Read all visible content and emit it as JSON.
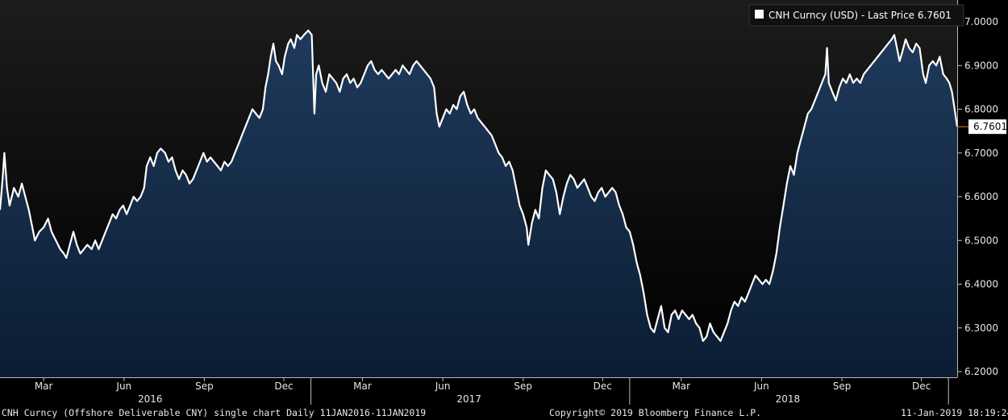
{
  "legend": {
    "label": "CNH Curncy (USD) - Last Price 6.7601"
  },
  "last_price_label": "6.7601",
  "footer": {
    "description": "CNH Curncy (Offshore Deliverable CNY) single chart  Daily 11JAN2016-11JAN2019",
    "copyright": "Copyright© 2019 Bloomberg Finance L.P.",
    "timestamp": "11-Jan-2019 18:19:24"
  },
  "colors": {
    "background": "#000000",
    "plot_top": "#1a1a1a",
    "area_top": "#1f3a5c",
    "area_bottom": "#0b1d33",
    "line": "#ffffff",
    "last_price_box": "#ffffff",
    "last_price_marker": "#e08a1e"
  },
  "chart_data": {
    "type": "area",
    "series": [
      {
        "name": "CNH Curncy (USD) - Last Price",
        "last": 6.7601
      }
    ],
    "ylim": [
      6.2,
      7.0
    ],
    "yticks": [
      6.2,
      6.3,
      6.4,
      6.5,
      6.6,
      6.7,
      6.8,
      6.9,
      7.0
    ],
    "ytick_labels": [
      "6.2000",
      "6.3000",
      "6.4000",
      "6.5000",
      "6.6000",
      "6.7000",
      "6.8000",
      "6.9000",
      "7.0000"
    ],
    "month_ticks": [
      {
        "label": "Mar",
        "date": "2016-03-01"
      },
      {
        "label": "Jun",
        "date": "2016-06-01"
      },
      {
        "label": "Sep",
        "date": "2016-09-01"
      },
      {
        "label": "Dec",
        "date": "2016-12-01"
      },
      {
        "label": "Mar",
        "date": "2017-03-01"
      },
      {
        "label": "Jun",
        "date": "2017-06-01"
      },
      {
        "label": "Sep",
        "date": "2017-09-01"
      },
      {
        "label": "Dec",
        "date": "2017-12-01"
      },
      {
        "label": "Mar",
        "date": "2018-03-01"
      },
      {
        "label": "Jun",
        "date": "2018-06-01"
      },
      {
        "label": "Sep",
        "date": "2018-09-01"
      },
      {
        "label": "Dec",
        "date": "2018-12-01"
      }
    ],
    "year_labels": [
      {
        "label": "2016",
        "date": "2016-07-01"
      },
      {
        "label": "2017",
        "date": "2017-07-01"
      },
      {
        "label": "2018",
        "date": "2018-07-01"
      }
    ],
    "year_boundaries": [
      "2017-01-01",
      "2018-01-01",
      "2019-01-01"
    ],
    "xlim": [
      "2016-01-11",
      "2019-01-11"
    ],
    "points": [
      [
        "2016-01-11",
        6.57
      ],
      [
        "2016-01-14",
        6.64
      ],
      [
        "2016-01-16",
        6.7
      ],
      [
        "2016-01-19",
        6.62
      ],
      [
        "2016-01-22",
        6.58
      ],
      [
        "2016-01-27",
        6.62
      ],
      [
        "2016-02-01",
        6.6
      ],
      [
        "2016-02-05",
        6.63
      ],
      [
        "2016-02-09",
        6.6
      ],
      [
        "2016-02-13",
        6.57
      ],
      [
        "2016-02-17",
        6.53
      ],
      [
        "2016-02-20",
        6.5
      ],
      [
        "2016-02-25",
        6.52
      ],
      [
        "2016-03-01",
        6.53
      ],
      [
        "2016-03-06",
        6.55
      ],
      [
        "2016-03-10",
        6.52
      ],
      [
        "2016-03-15",
        6.5
      ],
      [
        "2016-03-20",
        6.48
      ],
      [
        "2016-03-24",
        6.47
      ],
      [
        "2016-03-27",
        6.46
      ],
      [
        "2016-03-31",
        6.49
      ],
      [
        "2016-04-04",
        6.52
      ],
      [
        "2016-04-08",
        6.49
      ],
      [
        "2016-04-12",
        6.47
      ],
      [
        "2016-04-16",
        6.48
      ],
      [
        "2016-04-20",
        6.49
      ],
      [
        "2016-04-25",
        6.48
      ],
      [
        "2016-04-29",
        6.5
      ],
      [
        "2016-05-03",
        6.48
      ],
      [
        "2016-05-07",
        6.5
      ],
      [
        "2016-05-11",
        6.52
      ],
      [
        "2016-05-15",
        6.54
      ],
      [
        "2016-05-19",
        6.56
      ],
      [
        "2016-05-23",
        6.55
      ],
      [
        "2016-05-27",
        6.57
      ],
      [
        "2016-05-31",
        6.58
      ],
      [
        "2016-06-04",
        6.56
      ],
      [
        "2016-06-08",
        6.58
      ],
      [
        "2016-06-12",
        6.6
      ],
      [
        "2016-06-16",
        6.59
      ],
      [
        "2016-06-20",
        6.6
      ],
      [
        "2016-06-24",
        6.62
      ],
      [
        "2016-06-27",
        6.67
      ],
      [
        "2016-07-01",
        6.69
      ],
      [
        "2016-07-05",
        6.67
      ],
      [
        "2016-07-09",
        6.7
      ],
      [
        "2016-07-13",
        6.71
      ],
      [
        "2016-07-18",
        6.7
      ],
      [
        "2016-07-22",
        6.68
      ],
      [
        "2016-07-26",
        6.69
      ],
      [
        "2016-07-30",
        6.66
      ],
      [
        "2016-08-03",
        6.64
      ],
      [
        "2016-08-07",
        6.66
      ],
      [
        "2016-08-11",
        6.65
      ],
      [
        "2016-08-15",
        6.63
      ],
      [
        "2016-08-19",
        6.64
      ],
      [
        "2016-08-23",
        6.66
      ],
      [
        "2016-08-27",
        6.68
      ],
      [
        "2016-08-31",
        6.7
      ],
      [
        "2016-09-04",
        6.68
      ],
      [
        "2016-09-08",
        6.69
      ],
      [
        "2016-09-12",
        6.68
      ],
      [
        "2016-09-16",
        6.67
      ],
      [
        "2016-09-20",
        6.66
      ],
      [
        "2016-09-24",
        6.68
      ],
      [
        "2016-09-28",
        6.67
      ],
      [
        "2016-10-02",
        6.68
      ],
      [
        "2016-10-06",
        6.7
      ],
      [
        "2016-10-10",
        6.72
      ],
      [
        "2016-10-14",
        6.74
      ],
      [
        "2016-10-18",
        6.76
      ],
      [
        "2016-10-22",
        6.78
      ],
      [
        "2016-10-26",
        6.8
      ],
      [
        "2016-10-30",
        6.79
      ],
      [
        "2016-11-03",
        6.78
      ],
      [
        "2016-11-07",
        6.8
      ],
      [
        "2016-11-10",
        6.85
      ],
      [
        "2016-11-13",
        6.88
      ],
      [
        "2016-11-16",
        6.92
      ],
      [
        "2016-11-19",
        6.95
      ],
      [
        "2016-11-22",
        6.91
      ],
      [
        "2016-11-25",
        6.9
      ],
      [
        "2016-11-29",
        6.88
      ],
      [
        "2016-12-02",
        6.92
      ],
      [
        "2016-12-06",
        6.95
      ],
      [
        "2016-12-09",
        6.96
      ],
      [
        "2016-12-13",
        6.94
      ],
      [
        "2016-12-16",
        6.97
      ],
      [
        "2016-12-20",
        6.96
      ],
      [
        "2016-12-24",
        6.97
      ],
      [
        "2016-12-29",
        6.98
      ],
      [
        "2017-01-02",
        6.97
      ],
      [
        "2017-01-04",
        6.85
      ],
      [
        "2017-01-05",
        6.79
      ],
      [
        "2017-01-07",
        6.88
      ],
      [
        "2017-01-10",
        6.9
      ],
      [
        "2017-01-14",
        6.86
      ],
      [
        "2017-01-18",
        6.84
      ],
      [
        "2017-01-22",
        6.88
      ],
      [
        "2017-01-26",
        6.87
      ],
      [
        "2017-01-30",
        6.86
      ],
      [
        "2017-02-03",
        6.84
      ],
      [
        "2017-02-07",
        6.87
      ],
      [
        "2017-02-11",
        6.88
      ],
      [
        "2017-02-15",
        6.86
      ],
      [
        "2017-02-19",
        6.87
      ],
      [
        "2017-02-23",
        6.85
      ],
      [
        "2017-02-27",
        6.86
      ],
      [
        "2017-03-03",
        6.88
      ],
      [
        "2017-03-07",
        6.9
      ],
      [
        "2017-03-11",
        6.91
      ],
      [
        "2017-03-15",
        6.89
      ],
      [
        "2017-03-19",
        6.88
      ],
      [
        "2017-03-23",
        6.89
      ],
      [
        "2017-03-27",
        6.88
      ],
      [
        "2017-03-31",
        6.87
      ],
      [
        "2017-04-04",
        6.88
      ],
      [
        "2017-04-08",
        6.89
      ],
      [
        "2017-04-12",
        6.88
      ],
      [
        "2017-04-16",
        6.9
      ],
      [
        "2017-04-20",
        6.89
      ],
      [
        "2017-04-24",
        6.88
      ],
      [
        "2017-04-28",
        6.9
      ],
      [
        "2017-05-02",
        6.91
      ],
      [
        "2017-05-06",
        6.9
      ],
      [
        "2017-05-10",
        6.89
      ],
      [
        "2017-05-14",
        6.88
      ],
      [
        "2017-05-18",
        6.87
      ],
      [
        "2017-05-22",
        6.85
      ],
      [
        "2017-05-25",
        6.79
      ],
      [
        "2017-05-28",
        6.76
      ],
      [
        "2017-06-01",
        6.78
      ],
      [
        "2017-06-05",
        6.8
      ],
      [
        "2017-06-09",
        6.79
      ],
      [
        "2017-06-13",
        6.81
      ],
      [
        "2017-06-17",
        6.8
      ],
      [
        "2017-06-21",
        6.83
      ],
      [
        "2017-06-25",
        6.84
      ],
      [
        "2017-06-29",
        6.81
      ],
      [
        "2017-07-03",
        6.79
      ],
      [
        "2017-07-07",
        6.8
      ],
      [
        "2017-07-11",
        6.78
      ],
      [
        "2017-07-15",
        6.77
      ],
      [
        "2017-07-19",
        6.76
      ],
      [
        "2017-07-23",
        6.75
      ],
      [
        "2017-07-27",
        6.74
      ],
      [
        "2017-07-31",
        6.72
      ],
      [
        "2017-08-04",
        6.7
      ],
      [
        "2017-08-08",
        6.69
      ],
      [
        "2017-08-12",
        6.67
      ],
      [
        "2017-08-16",
        6.68
      ],
      [
        "2017-08-20",
        6.66
      ],
      [
        "2017-08-24",
        6.62
      ],
      [
        "2017-08-28",
        6.58
      ],
      [
        "2017-09-01",
        6.56
      ],
      [
        "2017-09-05",
        6.53
      ],
      [
        "2017-09-07",
        6.49
      ],
      [
        "2017-09-11",
        6.54
      ],
      [
        "2017-09-15",
        6.57
      ],
      [
        "2017-09-19",
        6.55
      ],
      [
        "2017-09-23",
        6.62
      ],
      [
        "2017-09-27",
        6.66
      ],
      [
        "2017-10-01",
        6.65
      ],
      [
        "2017-10-05",
        6.64
      ],
      [
        "2017-10-09",
        6.61
      ],
      [
        "2017-10-13",
        6.56
      ],
      [
        "2017-10-17",
        6.6
      ],
      [
        "2017-10-21",
        6.63
      ],
      [
        "2017-10-25",
        6.65
      ],
      [
        "2017-10-29",
        6.64
      ],
      [
        "2017-11-02",
        6.62
      ],
      [
        "2017-11-06",
        6.63
      ],
      [
        "2017-11-10",
        6.64
      ],
      [
        "2017-11-14",
        6.62
      ],
      [
        "2017-11-18",
        6.6
      ],
      [
        "2017-11-22",
        6.59
      ],
      [
        "2017-11-26",
        6.61
      ],
      [
        "2017-11-30",
        6.62
      ],
      [
        "2017-12-04",
        6.6
      ],
      [
        "2017-12-08",
        6.61
      ],
      [
        "2017-12-12",
        6.62
      ],
      [
        "2017-12-16",
        6.61
      ],
      [
        "2017-12-20",
        6.58
      ],
      [
        "2017-12-24",
        6.56
      ],
      [
        "2017-12-28",
        6.53
      ],
      [
        "2018-01-01",
        6.52
      ],
      [
        "2018-01-05",
        6.49
      ],
      [
        "2018-01-09",
        6.45
      ],
      [
        "2018-01-13",
        6.42
      ],
      [
        "2018-01-17",
        6.38
      ],
      [
        "2018-01-21",
        6.33
      ],
      [
        "2018-01-25",
        6.3
      ],
      [
        "2018-01-29",
        6.29
      ],
      [
        "2018-02-02",
        6.32
      ],
      [
        "2018-02-06",
        6.35
      ],
      [
        "2018-02-10",
        6.3
      ],
      [
        "2018-02-14",
        6.29
      ],
      [
        "2018-02-18",
        6.33
      ],
      [
        "2018-02-22",
        6.34
      ],
      [
        "2018-02-26",
        6.32
      ],
      [
        "2018-03-02",
        6.34
      ],
      [
        "2018-03-06",
        6.33
      ],
      [
        "2018-03-10",
        6.32
      ],
      [
        "2018-03-14",
        6.33
      ],
      [
        "2018-03-18",
        6.31
      ],
      [
        "2018-03-22",
        6.3
      ],
      [
        "2018-03-26",
        6.27
      ],
      [
        "2018-03-30",
        6.28
      ],
      [
        "2018-04-03",
        6.31
      ],
      [
        "2018-04-07",
        6.29
      ],
      [
        "2018-04-11",
        6.28
      ],
      [
        "2018-04-15",
        6.27
      ],
      [
        "2018-04-19",
        6.29
      ],
      [
        "2018-04-23",
        6.31
      ],
      [
        "2018-04-27",
        6.34
      ],
      [
        "2018-05-01",
        6.36
      ],
      [
        "2018-05-05",
        6.35
      ],
      [
        "2018-05-09",
        6.37
      ],
      [
        "2018-05-13",
        6.36
      ],
      [
        "2018-05-17",
        6.38
      ],
      [
        "2018-05-21",
        6.4
      ],
      [
        "2018-05-25",
        6.42
      ],
      [
        "2018-05-29",
        6.41
      ],
      [
        "2018-06-02",
        6.4
      ],
      [
        "2018-06-06",
        6.41
      ],
      [
        "2018-06-10",
        6.4
      ],
      [
        "2018-06-14",
        6.43
      ],
      [
        "2018-06-18",
        6.47
      ],
      [
        "2018-06-22",
        6.53
      ],
      [
        "2018-06-26",
        6.58
      ],
      [
        "2018-06-30",
        6.63
      ],
      [
        "2018-07-04",
        6.67
      ],
      [
        "2018-07-08",
        6.65
      ],
      [
        "2018-07-12",
        6.7
      ],
      [
        "2018-07-16",
        6.73
      ],
      [
        "2018-07-20",
        6.76
      ],
      [
        "2018-07-24",
        6.79
      ],
      [
        "2018-07-28",
        6.8
      ],
      [
        "2018-08-01",
        6.82
      ],
      [
        "2018-08-05",
        6.84
      ],
      [
        "2018-08-09",
        6.86
      ],
      [
        "2018-08-13",
        6.88
      ],
      [
        "2018-08-15",
        6.94
      ],
      [
        "2018-08-17",
        6.86
      ],
      [
        "2018-08-21",
        6.84
      ],
      [
        "2018-08-25",
        6.82
      ],
      [
        "2018-08-29",
        6.85
      ],
      [
        "2018-09-02",
        6.87
      ],
      [
        "2018-09-06",
        6.86
      ],
      [
        "2018-09-10",
        6.88
      ],
      [
        "2018-09-14",
        6.86
      ],
      [
        "2018-09-18",
        6.87
      ],
      [
        "2018-09-22",
        6.86
      ],
      [
        "2018-09-26",
        6.88
      ],
      [
        "2018-09-30",
        6.89
      ],
      [
        "2018-10-04",
        6.9
      ],
      [
        "2018-10-08",
        6.91
      ],
      [
        "2018-10-12",
        6.92
      ],
      [
        "2018-10-16",
        6.93
      ],
      [
        "2018-10-20",
        6.94
      ],
      [
        "2018-10-24",
        6.95
      ],
      [
        "2018-10-28",
        6.96
      ],
      [
        "2018-10-31",
        6.97
      ],
      [
        "2018-11-03",
        6.94
      ],
      [
        "2018-11-06",
        6.91
      ],
      [
        "2018-11-09",
        6.93
      ],
      [
        "2018-11-13",
        6.96
      ],
      [
        "2018-11-17",
        6.94
      ],
      [
        "2018-11-21",
        6.93
      ],
      [
        "2018-11-25",
        6.95
      ],
      [
        "2018-11-29",
        6.94
      ],
      [
        "2018-12-03",
        6.88
      ],
      [
        "2018-12-06",
        6.86
      ],
      [
        "2018-12-10",
        6.9
      ],
      [
        "2018-12-14",
        6.91
      ],
      [
        "2018-12-18",
        6.9
      ],
      [
        "2018-12-22",
        6.92
      ],
      [
        "2018-12-26",
        6.88
      ],
      [
        "2018-12-30",
        6.87
      ],
      [
        "2019-01-02",
        6.86
      ],
      [
        "2019-01-05",
        6.84
      ],
      [
        "2019-01-08",
        6.8
      ],
      [
        "2019-01-11",
        6.7601
      ]
    ]
  }
}
